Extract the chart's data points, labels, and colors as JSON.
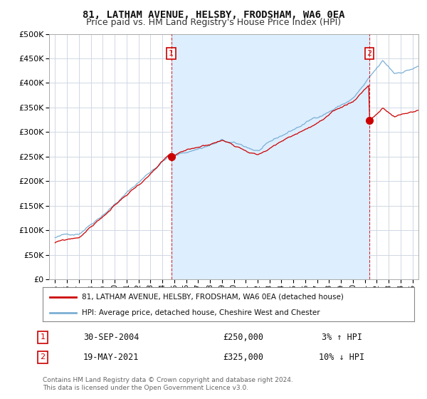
{
  "title": "81, LATHAM AVENUE, HELSBY, FRODSHAM, WA6 0EA",
  "subtitle": "Price paid vs. HM Land Registry's House Price Index (HPI)",
  "ylim": [
    0,
    500000
  ],
  "yticks": [
    0,
    50000,
    100000,
    150000,
    200000,
    250000,
    300000,
    350000,
    400000,
    450000,
    500000
  ],
  "background_color": "#ffffff",
  "grid_color": "#d0d8e4",
  "sale1_x": 2004.75,
  "sale1_price": 250000,
  "sale2_x": 2021.38,
  "sale2_price": 325000,
  "shade_color": "#ddeeff",
  "legend_entries": [
    "81, LATHAM AVENUE, HELSBY, FRODSHAM, WA6 0EA (detached house)",
    "HPI: Average price, detached house, Cheshire West and Chester"
  ],
  "legend_colors": [
    "#cc0000",
    "#7bafd4"
  ],
  "annotation1": [
    "1",
    "30-SEP-2004",
    "£250,000",
    "3% ↑ HPI"
  ],
  "annotation2": [
    "2",
    "19-MAY-2021",
    "£325,000",
    "10% ↓ HPI"
  ],
  "footer": "Contains HM Land Registry data © Crown copyright and database right 2024.\nThis data is licensed under the Open Government Licence v3.0.",
  "title_fontsize": 10,
  "subtitle_fontsize": 9,
  "hpi_color": "#7bafd4",
  "price_color": "#cc0000",
  "dashed_color": "#cc0000"
}
